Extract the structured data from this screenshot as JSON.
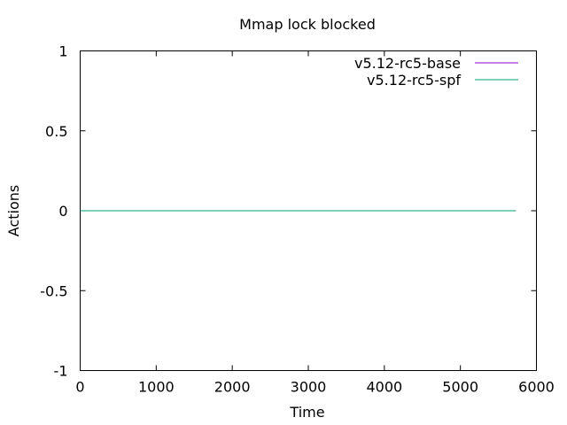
{
  "chart_data": {
    "type": "line",
    "title": "Mmap lock blocked",
    "xlabel": "Time",
    "ylabel": "Actions",
    "xlim": [
      0,
      6000
    ],
    "ylim": [
      -1,
      1
    ],
    "x_ticks": [
      0,
      1000,
      2000,
      3000,
      4000,
      5000,
      6000
    ],
    "x_tick_labels": [
      "0",
      "1000",
      "2000",
      "3000",
      "4000",
      "5000",
      "6000"
    ],
    "y_ticks": [
      -1,
      -0.5,
      0,
      0.5,
      1
    ],
    "y_tick_labels": [
      "-1",
      "-0.5",
      "0",
      "0.5",
      "1"
    ],
    "grid": false,
    "legend_position": "top-right",
    "series": [
      {
        "name": "v5.12-rc5-base",
        "color": "#9400d3",
        "x": [
          0,
          5730
        ],
        "y": [
          0,
          0
        ]
      },
      {
        "name": "v5.12-rc5-spf",
        "color": "#009e73",
        "x": [
          0,
          5730
        ],
        "y": [
          0,
          0
        ]
      }
    ]
  }
}
